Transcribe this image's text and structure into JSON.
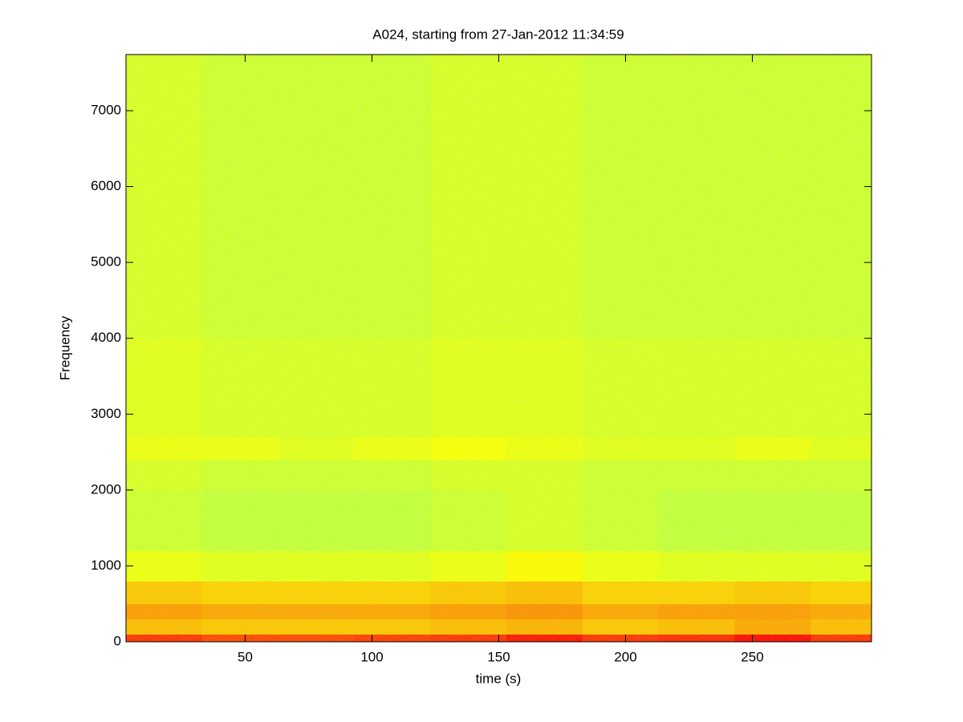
{
  "chart_data": {
    "type": "spectrogram",
    "title": "A024, starting from 27-Jan-2012 11:34:59",
    "x_label": "time (s)",
    "y_label": "Frequency",
    "xlim": [
      3,
      297
    ],
    "ylim": [
      0,
      7740
    ],
    "xticks": [
      50,
      100,
      150,
      200,
      250
    ],
    "yticks": [
      0,
      1000,
      2000,
      3000,
      4000,
      5000,
      6000,
      7000
    ],
    "colormap": "jet",
    "clim": [
      0,
      1
    ],
    "xbins": [
      3,
      33,
      63,
      93,
      123,
      153,
      183,
      213,
      243,
      273,
      297
    ],
    "ybins": [
      0,
      100,
      300,
      500,
      800,
      1200,
      2000,
      2400,
      2700,
      4000,
      7740
    ],
    "z": [
      [
        0.82,
        0.8,
        0.8,
        0.81,
        0.82,
        0.85,
        0.82,
        0.83,
        0.86,
        0.82
      ],
      [
        0.69,
        0.68,
        0.68,
        0.68,
        0.69,
        0.7,
        0.68,
        0.69,
        0.71,
        0.69
      ],
      [
        0.72,
        0.71,
        0.71,
        0.71,
        0.72,
        0.73,
        0.71,
        0.72,
        0.72,
        0.71
      ],
      [
        0.68,
        0.67,
        0.67,
        0.67,
        0.68,
        0.69,
        0.67,
        0.67,
        0.68,
        0.67
      ],
      [
        0.61,
        0.6,
        0.6,
        0.6,
        0.61,
        0.63,
        0.61,
        0.6,
        0.6,
        0.6
      ],
      [
        0.58,
        0.57,
        0.57,
        0.57,
        0.58,
        0.59,
        0.58,
        0.57,
        0.57,
        0.57
      ],
      [
        0.59,
        0.58,
        0.58,
        0.58,
        0.59,
        0.59,
        0.58,
        0.58,
        0.58,
        0.58
      ],
      [
        0.61,
        0.61,
        0.6,
        0.61,
        0.62,
        0.61,
        0.6,
        0.6,
        0.61,
        0.6
      ],
      [
        0.6,
        0.59,
        0.59,
        0.59,
        0.6,
        0.6,
        0.59,
        0.59,
        0.59,
        0.59
      ],
      [
        0.59,
        0.58,
        0.58,
        0.58,
        0.59,
        0.59,
        0.58,
        0.58,
        0.58,
        0.58
      ]
    ]
  }
}
